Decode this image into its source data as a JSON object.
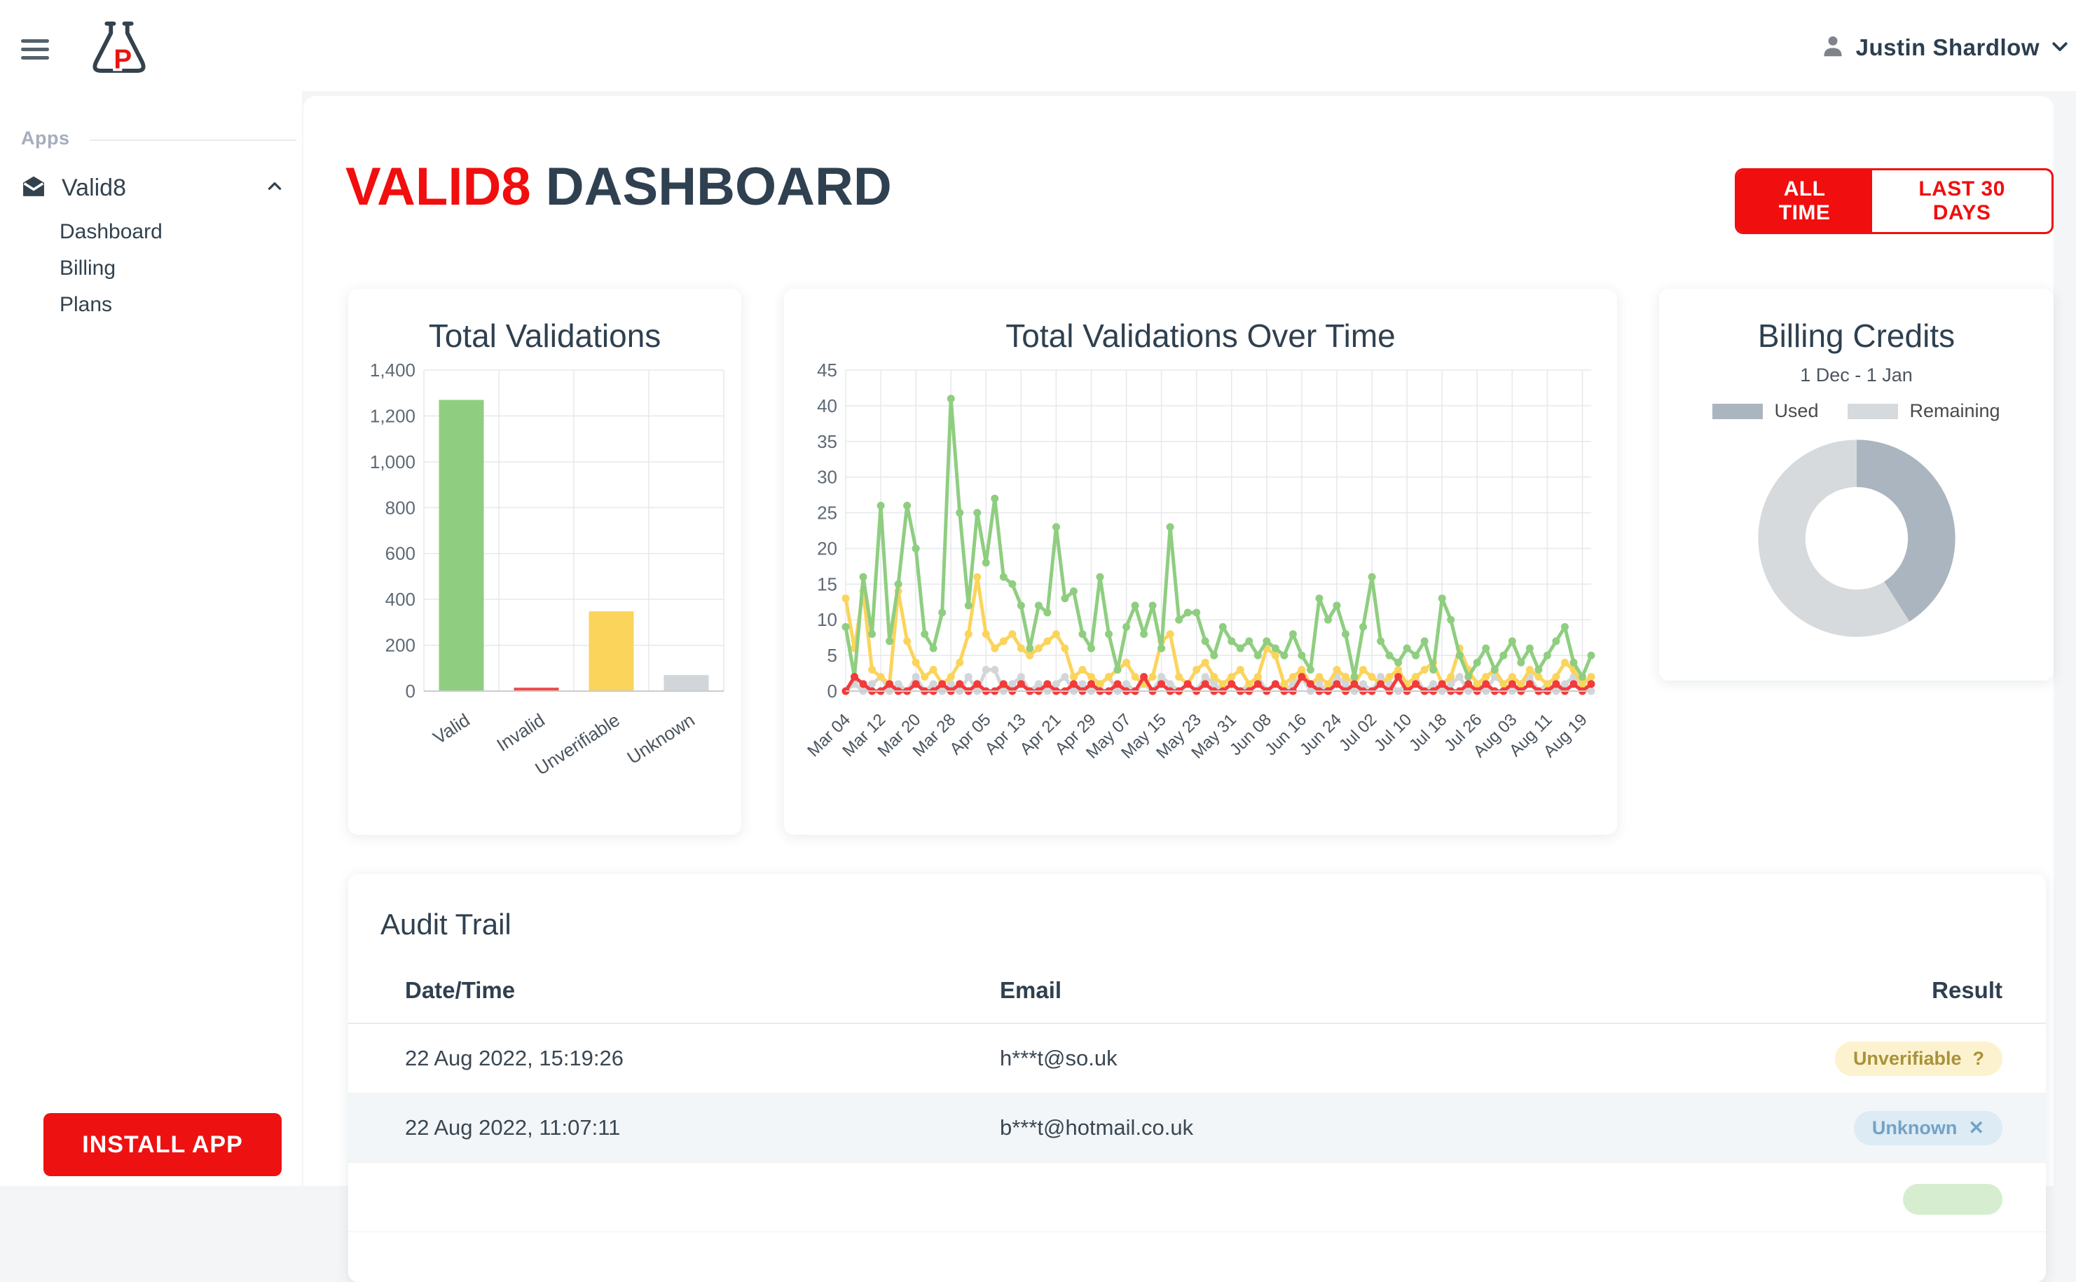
{
  "topbar": {
    "user_name": "Justin Shardlow",
    "logo_letter": "P"
  },
  "sidebar": {
    "section_label": "Apps",
    "app_label": "Valid8",
    "items": [
      {
        "label": "Dashboard"
      },
      {
        "label": "Billing"
      },
      {
        "label": "Plans"
      }
    ],
    "install_button_label": "INSTALL APP"
  },
  "header": {
    "title_accent": "VALID8",
    "title_rest": " DASHBOARD",
    "filters": [
      {
        "label": "ALL TIME",
        "active": true
      },
      {
        "label": "LAST 30 DAYS",
        "active": false
      }
    ]
  },
  "colors": {
    "brand_red": "#f10e0e",
    "slate": "#2f4050",
    "valid_green": "#8fce80",
    "invalid_red": "#f23b3b",
    "unverifiable_yellow": "#fbd45c",
    "unknown_gray": "#d3d6d9",
    "donut_used": "#aab5bf",
    "donut_remaining": "#d7dadc",
    "grid": "#e6e8ea",
    "axis_text": "#5f6a75"
  },
  "chart_data": [
    {
      "type": "bar",
      "title": "Total Validations",
      "categories": [
        "Valid",
        "Invalid",
        "Unverifiable",
        "Unknown"
      ],
      "values": [
        1270,
        15,
        348,
        70
      ],
      "bar_colors": [
        "#8fce80",
        "#f04a4a",
        "#fbd45c",
        "#d3d6d9"
      ],
      "ylim": [
        0,
        1400
      ],
      "ytick_step": 200,
      "grid": true,
      "legend": false
    },
    {
      "type": "line",
      "title": "Total Validations Over Time",
      "x_start": "Mar 04",
      "x_end": "Aug 22",
      "point_interval_days": 2,
      "x_span_days": 170,
      "tick_labels": [
        "Mar 04",
        "Mar 12",
        "Mar 20",
        "Mar 28",
        "Apr 05",
        "Apr 13",
        "Apr 21",
        "Apr 29",
        "May 07",
        "May 15",
        "May 23",
        "May 31",
        "Jun 08",
        "Jun 16",
        "Jun 24",
        "Jul 02",
        "Jul 10",
        "Jul 18",
        "Jul 26",
        "Aug 03",
        "Aug 11",
        "Aug 19"
      ],
      "tick_interval_days": 8,
      "ylim": [
        0,
        45
      ],
      "ytick_step": 5,
      "grid": true,
      "legend": false,
      "series": [
        {
          "name": "Unknown",
          "color": "#d3d6d9",
          "values": [
            0,
            1,
            0,
            1,
            2,
            0,
            1,
            0,
            2,
            0,
            1,
            0,
            1,
            0,
            2,
            0,
            3,
            3,
            0,
            1,
            2,
            0,
            1,
            0,
            1,
            2,
            0,
            1,
            0,
            1,
            2,
            0,
            1,
            0,
            1,
            0,
            2,
            1,
            0,
            1,
            0,
            2,
            1,
            0,
            1,
            0,
            1,
            2,
            0,
            1,
            0,
            1,
            2,
            0,
            1,
            0,
            2,
            1,
            0,
            1,
            0,
            2,
            1,
            0,
            1,
            2,
            0,
            1,
            0,
            1,
            2,
            0,
            1,
            0,
            2,
            1,
            0,
            1,
            2,
            0,
            1,
            0,
            1,
            2,
            1,
            0
          ]
        },
        {
          "name": "Unverifiable",
          "color": "#fbd45c",
          "values": [
            13,
            6,
            14,
            3,
            2,
            1,
            14,
            7,
            4,
            2,
            3,
            1,
            2,
            4,
            8,
            16,
            8,
            6,
            7,
            8,
            6,
            5,
            6,
            7,
            8,
            6,
            2,
            3,
            2,
            1,
            2,
            3,
            4,
            2,
            1,
            2,
            7,
            8,
            2,
            1,
            3,
            4,
            2,
            1,
            2,
            3,
            1,
            2,
            6,
            5,
            1,
            2,
            3,
            1,
            2,
            1,
            3,
            2,
            1,
            3,
            2,
            1,
            2,
            3,
            1,
            2,
            3,
            4,
            1,
            2,
            6,
            3,
            1,
            2,
            3,
            1,
            2,
            1,
            3,
            2,
            1,
            2,
            4,
            3,
            1,
            2
          ]
        },
        {
          "name": "Valid",
          "color": "#8fce80",
          "values": [
            9,
            2,
            16,
            8,
            26,
            7,
            15,
            26,
            20,
            8,
            6,
            11,
            41,
            25,
            12,
            25,
            18,
            27,
            16,
            15,
            12,
            6,
            12,
            11,
            23,
            13,
            14,
            8,
            6,
            16,
            8,
            3,
            9,
            12,
            8,
            12,
            6,
            23,
            10,
            11,
            11,
            7,
            5,
            9,
            7,
            6,
            7,
            5,
            7,
            6,
            5,
            8,
            5,
            3,
            13,
            10,
            12,
            8,
            2,
            9,
            16,
            7,
            5,
            4,
            6,
            5,
            7,
            3,
            13,
            10,
            5,
            2,
            4,
            6,
            3,
            5,
            7,
            4,
            6,
            3,
            5,
            7,
            9,
            4,
            2,
            5
          ]
        },
        {
          "name": "Invalid",
          "color": "#f23b3b",
          "values": [
            0,
            2,
            1,
            0,
            0,
            1,
            0,
            0,
            1,
            0,
            0,
            1,
            0,
            1,
            0,
            1,
            0,
            0,
            1,
            0,
            1,
            0,
            0,
            1,
            0,
            0,
            1,
            0,
            1,
            0,
            0,
            1,
            0,
            0,
            2,
            0,
            1,
            0,
            0,
            1,
            0,
            1,
            0,
            0,
            1,
            0,
            0,
            1,
            0,
            1,
            0,
            0,
            2,
            1,
            0,
            0,
            1,
            0,
            1,
            0,
            0,
            1,
            0,
            2,
            0,
            1,
            0,
            0,
            1,
            0,
            0,
            1,
            0,
            1,
            0,
            0,
            1,
            0,
            1,
            0,
            0,
            1,
            0,
            1,
            0,
            1
          ]
        }
      ]
    },
    {
      "type": "pie",
      "title": "Billing Credits",
      "subtitle": "1 Dec - 1 Jan",
      "labels": [
        "Used",
        "Remaining"
      ],
      "values_pct": [
        41,
        59
      ],
      "slice_colors": [
        "#aab5bf",
        "#d7dadc"
      ],
      "donut": true,
      "legend_position": "top"
    }
  ],
  "audit": {
    "title": "Audit Trail",
    "columns": [
      "Date/Time",
      "Email",
      "Result"
    ],
    "rows": [
      {
        "date": "22 Aug 2022, 15:19:26",
        "email": "h***t@so.uk",
        "result": "Unverifiable",
        "result_icon": "?",
        "result_type": "unverifiable",
        "striped": false
      },
      {
        "date": "22 Aug 2022, 11:07:11",
        "email": "b***t@hotmail.co.uk",
        "result": "Unknown",
        "result_icon": "✕",
        "result_type": "unknown",
        "striped": true
      },
      {
        "date": "",
        "email": "",
        "result": "",
        "result_icon": "",
        "result_type": "valid",
        "striped": false
      }
    ]
  }
}
